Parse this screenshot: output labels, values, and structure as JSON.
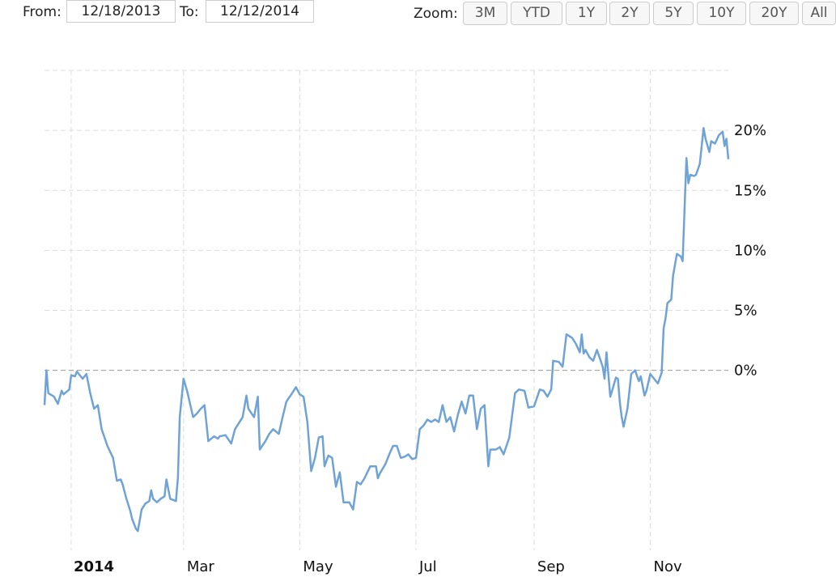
{
  "controls": {
    "from_label": "From:",
    "from_value": "12/18/2013",
    "to_label": "To:",
    "to_value": "12/12/2014",
    "zoom_label": "Zoom:",
    "zoom_buttons": [
      "3M",
      "YTD",
      "1Y",
      "2Y",
      "5Y",
      "10Y",
      "20Y",
      "All"
    ]
  },
  "chart_data": {
    "type": "line",
    "color": "#6fa3d6",
    "grid": true,
    "x": [
      -14,
      -13,
      -12,
      -9,
      -7,
      -5,
      -4,
      -1,
      0,
      2,
      3,
      6,
      8,
      10,
      12,
      14,
      16,
      19,
      22,
      24,
      26,
      27,
      29,
      31,
      32,
      34,
      35,
      37,
      39,
      41,
      42,
      43,
      45,
      47,
      49,
      50,
      52,
      55,
      56,
      57,
      59,
      61,
      64,
      66,
      68,
      70,
      72,
      75,
      77,
      78,
      81,
      84,
      86,
      88,
      90,
      92,
      93,
      96,
      98,
      99,
      102,
      104,
      106,
      109,
      111,
      113,
      116,
      118,
      120,
      122,
      124,
      126,
      128,
      130,
      132,
      133,
      135,
      137,
      139,
      141,
      143,
      146,
      148,
      150,
      152,
      154,
      157,
      160,
      161,
      162,
      165,
      167,
      169,
      171,
      173,
      175,
      177,
      179,
      181,
      183,
      185,
      187,
      189,
      191,
      193,
      195,
      197,
      199,
      201,
      203,
      205,
      207,
      209,
      211,
      213,
      215,
      217,
      219,
      220,
      223,
      225,
      227,
      230,
      233,
      235,
      238,
      240,
      243,
      246,
      248,
      250,
      252,
      253,
      256,
      258,
      260,
      263,
      265,
      267,
      268,
      269,
      270,
      272,
      274,
      276,
      278,
      279,
      280,
      281,
      283,
      284,
      286,
      287,
      288,
      289,
      290,
      292,
      294,
      296,
      298,
      299,
      301,
      302,
      304,
      307,
      308,
      310,
      311,
      312,
      313,
      315,
      316,
      318,
      320,
      321,
      323,
      324,
      325,
      327,
      328,
      330,
      332,
      333,
      335,
      336,
      338,
      340,
      342,
      343,
      344,
      345
    ],
    "values": [
      -2.9,
      0.0,
      -1.9,
      -2.2,
      -2.8,
      -1.7,
      -2.0,
      -1.6,
      -0.4,
      -0.5,
      -0.1,
      -0.7,
      -0.3,
      -1.9,
      -3.2,
      -2.9,
      -4.9,
      -6.3,
      -7.3,
      -9.2,
      -9.1,
      -9.5,
      -10.7,
      -11.7,
      -12.4,
      -13.2,
      -13.4,
      -11.6,
      -11.1,
      -10.9,
      -10.0,
      -10.7,
      -11.0,
      -10.7,
      -10.5,
      -9.1,
      -10.7,
      -10.9,
      -9.0,
      -3.9,
      -0.7,
      -1.8,
      -3.9,
      -3.6,
      -3.2,
      -2.9,
      -5.9,
      -5.5,
      -5.7,
      -5.5,
      -5.4,
      -6.1,
      -4.9,
      -4.4,
      -3.9,
      -2.1,
      -3.2,
      -3.9,
      -2.2,
      -6.6,
      -5.9,
      -5.3,
      -4.9,
      -5.3,
      -3.9,
      -2.6,
      -1.9,
      -1.4,
      -2.0,
      -2.2,
      -4.3,
      -8.4,
      -7.3,
      -5.6,
      -5.5,
      -8.0,
      -7.1,
      -7.3,
      -9.7,
      -8.5,
      -11.0,
      -11.0,
      -11.6,
      -9.3,
      -9.5,
      -9.0,
      -8.0,
      -8.0,
      -9.0,
      -8.6,
      -7.8,
      -7.0,
      -6.3,
      -6.3,
      -7.3,
      -7.2,
      -7.0,
      -7.4,
      -7.3,
      -4.9,
      -4.6,
      -4.1,
      -4.3,
      -4.1,
      -4.3,
      -2.9,
      -4.3,
      -3.9,
      -5.1,
      -3.7,
      -2.6,
      -3.6,
      -2.1,
      -2.1,
      -4.9,
      -3.2,
      -2.9,
      -8.0,
      -6.6,
      -6.6,
      -6.4,
      -7.0,
      -5.6,
      -1.9,
      -1.6,
      -1.7,
      -3.1,
      -3.0,
      -1.6,
      -1.7,
      -2.2,
      -1.6,
      0.8,
      0.7,
      0.3,
      3.0,
      2.7,
      2.2,
      1.5,
      3.0,
      1.4,
      1.7,
      1.1,
      0.8,
      1.7,
      0.8,
      0.3,
      -0.7,
      1.5,
      -2.2,
      -1.7,
      -0.6,
      -0.7,
      -2.6,
      -3.9,
      -4.7,
      -3.2,
      -0.3,
      0.0,
      -0.9,
      -0.5,
      -2.1,
      -1.7,
      -0.3,
      -0.9,
      -1.1,
      -0.2,
      3.5,
      4.3,
      5.6,
      5.9,
      7.9,
      9.7,
      9.5,
      9.1,
      17.7,
      15.6,
      16.3,
      16.2,
      16.3,
      17.2,
      20.2,
      19.3,
      18.2,
      19.1,
      18.9,
      19.6,
      19.9,
      18.7,
      19.3,
      17.6
    ],
    "xlim": [
      -14,
      345
    ],
    "xticks": [
      {
        "value": 0,
        "label": "2014"
      },
      {
        "value": 59,
        "label": "Mar"
      },
      {
        "value": 120,
        "label": "May"
      },
      {
        "value": 181,
        "label": "Jul"
      },
      {
        "value": 243,
        "label": "Sep"
      },
      {
        "value": 304,
        "label": "Nov"
      }
    ],
    "ylim": [
      -15,
      25
    ],
    "yticks": [
      {
        "value": 0,
        "label": "0%"
      },
      {
        "value": 5,
        "label": "5%"
      },
      {
        "value": 10,
        "label": "10%"
      },
      {
        "value": 15,
        "label": "15%"
      },
      {
        "value": 20,
        "label": "20%"
      }
    ]
  }
}
